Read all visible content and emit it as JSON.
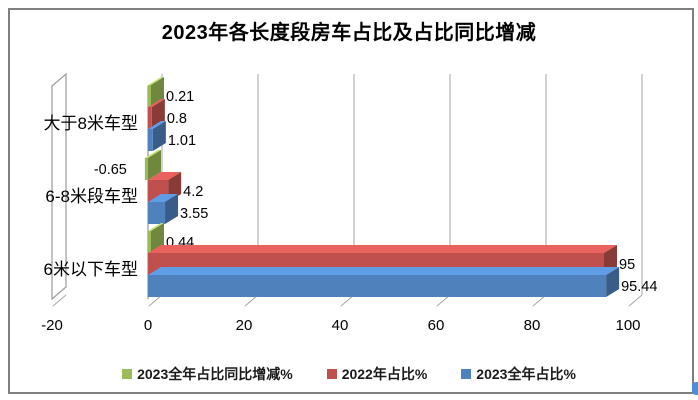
{
  "title": "2023年各长度段房车占比及占比同比增减",
  "chart_data": {
    "type": "bar",
    "orientation": "horizontal",
    "effect": "3d",
    "title": "2023年各长度段房车占比及占比同比增减",
    "categories": [
      "大于8米车型",
      "6-8米段车型",
      "6米以下车型"
    ],
    "series": [
      {
        "name": "2023全年占比同比增减%",
        "color": "#9BBB59",
        "values": [
          0.21,
          -0.65,
          0.44
        ],
        "labels": [
          "0.21",
          "-0.65",
          "0.44"
        ]
      },
      {
        "name": "2022年占比%",
        "color": "#C0504D",
        "values": [
          0.8,
          4.2,
          95
        ],
        "labels": [
          "0.8",
          "4.2",
          "95"
        ]
      },
      {
        "name": "2023全年占比%",
        "color": "#4F81BD",
        "values": [
          1.01,
          3.55,
          95.44
        ],
        "labels": [
          "1.01",
          "3.55",
          "95.44"
        ]
      }
    ],
    "xlabel": "",
    "ylabel": "",
    "x_ticks": [
      "-20",
      "0",
      "20",
      "40",
      "60",
      "80",
      "100"
    ],
    "x_tick_values": [
      -20,
      0,
      20,
      40,
      60,
      80,
      100
    ],
    "xlim": [
      -20,
      100
    ],
    "grid": true,
    "legend_position": "bottom"
  },
  "colors": {
    "border": "#7f7f7f",
    "gridline": "#a6a6a6",
    "axis": "#808080",
    "text": "#000000",
    "artifact_blue": "#4a90d9"
  }
}
